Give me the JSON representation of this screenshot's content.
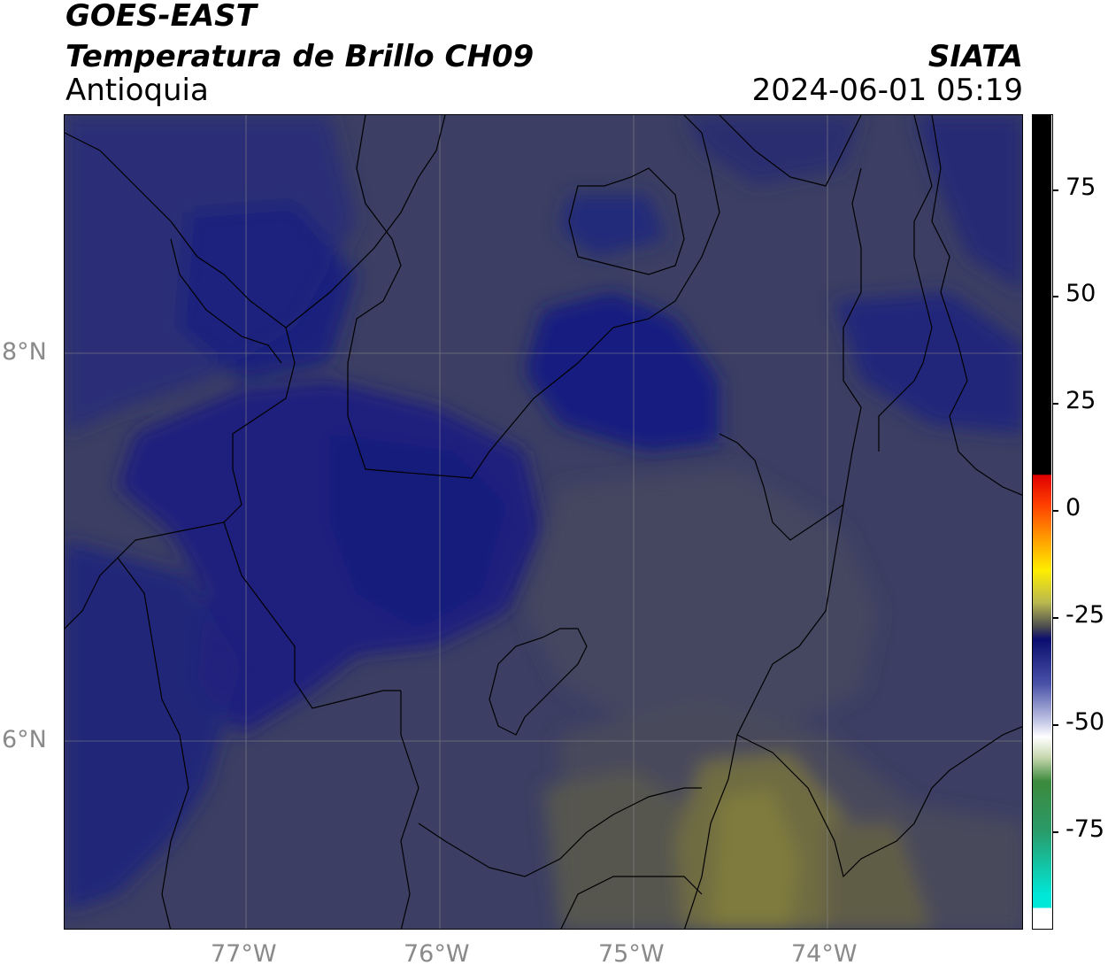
{
  "header": {
    "satellite": "GOES-EAST",
    "product": "Temperatura de Brillo CH09",
    "region": "Antioquia",
    "agency": "SIATA",
    "timestamp": "2024-06-01 05:19"
  },
  "map": {
    "lat_ticks": [
      "8°N",
      "6°N"
    ],
    "lon_ticks": [
      "77°W",
      "76°W",
      "75°W",
      "74°W"
    ],
    "grid": true,
    "palette": {
      "deep_blue": "#131b78",
      "mid_blue": "#23297a",
      "slate": "#3c3f63",
      "gray_slate": "#474863",
      "olive": "#6c6a45",
      "olive_bright": "#7f7a3c"
    }
  },
  "colorbar": {
    "labels": [
      "75",
      "50",
      "25",
      "0",
      "-25",
      "-50",
      "-75"
    ],
    "stops": [
      {
        "color": "#000000"
      },
      {
        "color": "#ff0000"
      },
      {
        "color": "#ff8c00"
      },
      {
        "color": "#ffff00"
      },
      {
        "color": "#5a5a4a"
      },
      {
        "color": "#0c1070"
      },
      {
        "color": "#ffffff"
      },
      {
        "color": "#2a8a2a"
      },
      {
        "color": "#00e5d4"
      },
      {
        "color": "#ffffff"
      }
    ]
  }
}
